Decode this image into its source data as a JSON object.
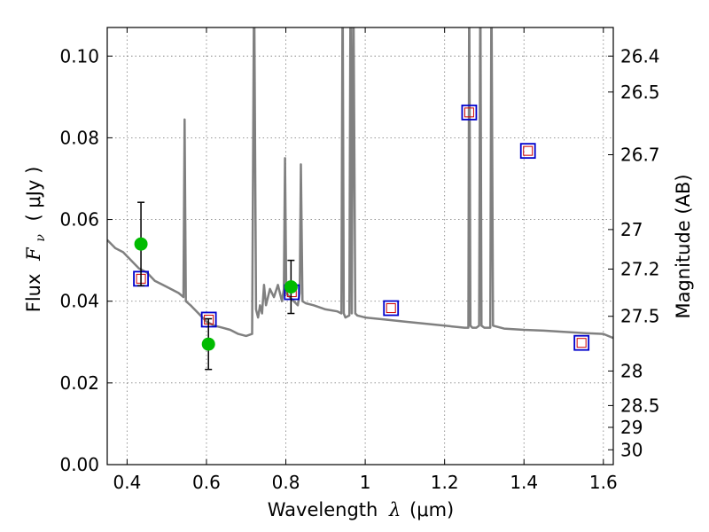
{
  "chart_data": {
    "type": "line",
    "xlabel": "Wavelength",
    "xlabel_symbol": "λ",
    "xlabel_unit": "(μm)",
    "ylabel": "Flux",
    "ylabel_symbol": "F",
    "ylabel_sub": "ν",
    "ylabel_unit": "( μJy )",
    "y2label": "Magnitude (AB)",
    "xlim": [
      0.35,
      1.625
    ],
    "ylim": [
      0.0,
      0.107
    ],
    "grid": true,
    "x_ticks": [
      0.4,
      0.6,
      0.8,
      1.0,
      1.2,
      1.4,
      1.6
    ],
    "x_tick_labels": [
      "0.4",
      "0.6",
      "0.8",
      "1",
      "1.2",
      "1.4",
      "1.6"
    ],
    "y_ticks": [
      0.0,
      0.02,
      0.04,
      0.06,
      0.08,
      0.1
    ],
    "y_tick_labels": [
      "0.00",
      "0.02",
      "0.04",
      "0.06",
      "0.08",
      "0.10"
    ],
    "y2_ticks": [
      26.4,
      26.5,
      26.7,
      27,
      27.2,
      27.5,
      28,
      28.5,
      29,
      30
    ],
    "y2_tick_labels": [
      "26.4",
      "26.5",
      "26.7",
      "27",
      "27.2",
      "27.5",
      "28",
      "28.5",
      "29",
      "30"
    ],
    "colors": {
      "sed": "#808080",
      "observed": "#00bb00",
      "model_outer": "#0000cc",
      "model_inner": "#cc0000",
      "grid": "#888888"
    },
    "series": [
      {
        "type": "line",
        "x": [
          0.35,
          0.37,
          0.39,
          0.41,
          0.43,
          0.45,
          0.47,
          0.49,
          0.51,
          0.53,
          0.542,
          0.545,
          0.548,
          0.56,
          0.58,
          0.6,
          0.62,
          0.64,
          0.66,
          0.68,
          0.7,
          0.715,
          0.72,
          0.725,
          0.73,
          0.735,
          0.74,
          0.745,
          0.75,
          0.76,
          0.77,
          0.78,
          0.79,
          0.795,
          0.798,
          0.801,
          0.81,
          0.82,
          0.83,
          0.835,
          0.838,
          0.842,
          0.85,
          0.87,
          0.9,
          0.93,
          0.94,
          0.943,
          0.946,
          0.95,
          0.96,
          0.963,
          0.966,
          0.97,
          0.975,
          0.98,
          1.0,
          1.05,
          1.1,
          1.15,
          1.2,
          1.25,
          1.26,
          1.262,
          1.265,
          1.27,
          1.28,
          1.287,
          1.29,
          1.293,
          1.3,
          1.315,
          1.318,
          1.322,
          1.35,
          1.4,
          1.45,
          1.5,
          1.55,
          1.6,
          1.625
        ],
        "y": [
          0.055,
          0.053,
          0.052,
          0.05,
          0.048,
          0.047,
          0.045,
          0.044,
          0.043,
          0.042,
          0.041,
          0.0845,
          0.04,
          0.039,
          0.037,
          0.035,
          0.034,
          0.0335,
          0.033,
          0.032,
          0.0315,
          0.032,
          0.12,
          0.038,
          0.036,
          0.039,
          0.037,
          0.044,
          0.039,
          0.043,
          0.041,
          0.044,
          0.04,
          0.043,
          0.075,
          0.042,
          0.041,
          0.04,
          0.039,
          0.042,
          0.0735,
          0.04,
          0.0395,
          0.039,
          0.038,
          0.0375,
          0.037,
          0.12,
          0.037,
          0.036,
          0.0365,
          0.12,
          0.037,
          0.12,
          0.037,
          0.0365,
          0.036,
          0.0355,
          0.035,
          0.0345,
          0.034,
          0.0335,
          0.0335,
          0.12,
          0.034,
          0.0335,
          0.0335,
          0.034,
          0.12,
          0.034,
          0.0335,
          0.0335,
          0.12,
          0.034,
          0.0333,
          0.033,
          0.0328,
          0.0325,
          0.0322,
          0.032,
          0.031
        ]
      },
      {
        "type": "scatter",
        "marker": "circle",
        "x": [
          0.435,
          0.605,
          0.813
        ],
        "y": [
          0.054,
          0.0295,
          0.0435
        ],
        "yerr": [
          0.0102,
          0.0062,
          0.0065
        ]
      },
      {
        "type": "scatter",
        "marker": "square",
        "x": [
          0.435,
          0.606,
          0.815,
          1.065,
          1.262,
          1.41,
          1.545
        ],
        "y": [
          0.0455,
          0.0355,
          0.0422,
          0.0383,
          0.0862,
          0.0768,
          0.0298
        ]
      }
    ]
  }
}
